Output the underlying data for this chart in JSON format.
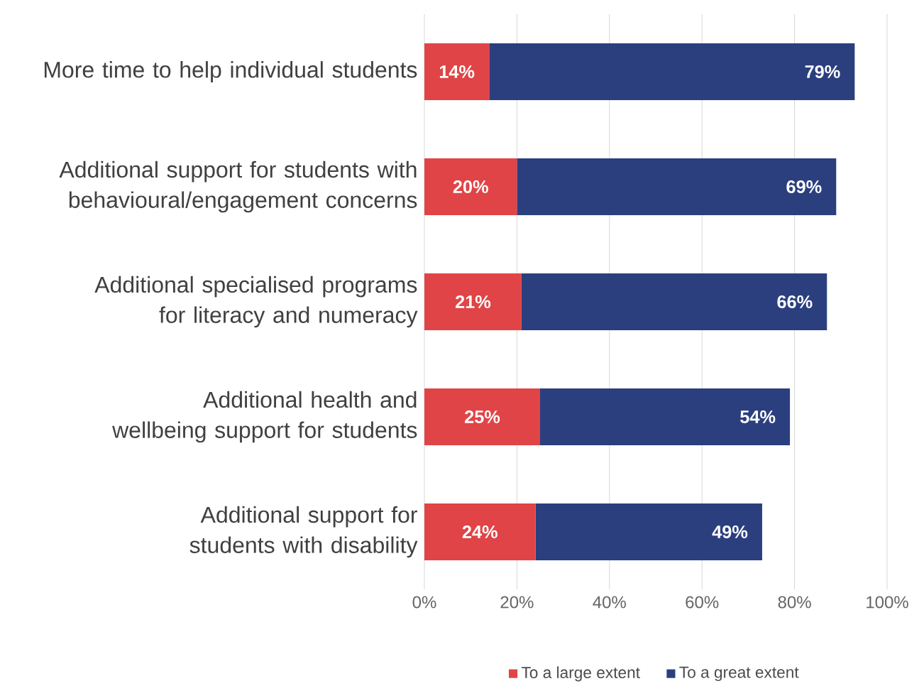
{
  "chart_data": {
    "type": "bar",
    "orientation": "horizontal",
    "stacked": true,
    "categories": [
      "More time to help individual students",
      "Additional support for students with behavioural/engagement concerns",
      "Additional specialised programs for literacy and numeracy",
      "Additional health and wellbeing support for students",
      "Additional support for students with disability"
    ],
    "series": [
      {
        "name": "To a large extent",
        "color": "#e04446",
        "values": [
          14,
          20,
          21,
          25,
          24
        ],
        "value_labels": [
          "14%",
          "20%",
          "21%",
          "25%",
          "24%"
        ]
      },
      {
        "name": "To a great extent",
        "color": "#2b3f7f",
        "values": [
          79,
          69,
          66,
          54,
          49
        ],
        "value_labels": [
          "79%",
          "69%",
          "66%",
          "54%",
          "49%"
        ]
      }
    ],
    "xlim": [
      0,
      100
    ],
    "xticks": [
      {
        "value": 0,
        "label": "0%"
      },
      {
        "value": 20,
        "label": "20%"
      },
      {
        "value": 40,
        "label": "40%"
      },
      {
        "value": 60,
        "label": "60%"
      },
      {
        "value": 80,
        "label": "80%"
      },
      {
        "value": 100,
        "label": "100%"
      }
    ],
    "grid": "x",
    "legend": "bottom"
  }
}
